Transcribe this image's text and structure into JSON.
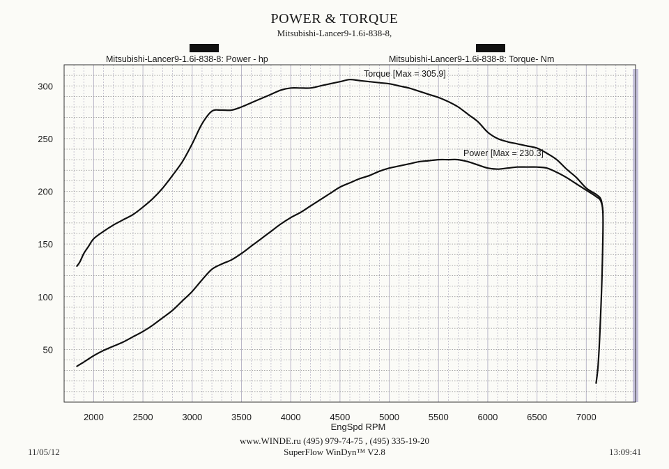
{
  "header": {
    "title": "POWER & TORQUE",
    "subtitle": "Mitsubishi-Lancer9-1.6i-838-8,"
  },
  "legend": {
    "power_label": "Mitsubishi-Lancer9-1.6i-838-8: Power -  hp",
    "torque_label": "Mitsubishi-Lancer9-1.6i-838-8: Torque-  Nm"
  },
  "chart_data": {
    "type": "line",
    "xlabel": "EngSpd  RPM",
    "ylabel": "",
    "xlim": [
      1700,
      7500
    ],
    "ylim": [
      0,
      320
    ],
    "x_ticks": [
      2000,
      2500,
      3000,
      3500,
      4000,
      4500,
      5000,
      5500,
      6000,
      6500,
      7000
    ],
    "y_ticks": [
      50,
      100,
      150,
      200,
      250,
      300
    ],
    "grid": true,
    "series": [
      {
        "name": "Torque",
        "unit": "Nm",
        "annotation": "Torque [Max = 305.9]",
        "color": "#111111",
        "x": [
          1830,
          1860,
          1900,
          1950,
          2000,
          2100,
          2200,
          2300,
          2400,
          2500,
          2600,
          2700,
          2800,
          2900,
          3000,
          3100,
          3200,
          3300,
          3400,
          3500,
          3600,
          3700,
          3800,
          3900,
          4000,
          4100,
          4200,
          4300,
          4400,
          4500,
          4600,
          4700,
          4800,
          4900,
          5000,
          5100,
          5200,
          5300,
          5400,
          5500,
          5600,
          5700,
          5800,
          5900,
          6000,
          6100,
          6200,
          6300,
          6400,
          6500,
          6600,
          6700,
          6800,
          6900,
          7000,
          7100,
          7150,
          7170
        ],
        "y": [
          129,
          133,
          141,
          148,
          155,
          162,
          168,
          173,
          178,
          185,
          193,
          203,
          215,
          228,
          245,
          264,
          276,
          277,
          277,
          280,
          284,
          288,
          292,
          296,
          298,
          298,
          298,
          300,
          302,
          304,
          306,
          305,
          304,
          303,
          302,
          300,
          298,
          295,
          292,
          289,
          285,
          280,
          273,
          266,
          256,
          250,
          247,
          245,
          243,
          241,
          236,
          230,
          221,
          213,
          203,
          197,
          192,
          180
        ]
      },
      {
        "name": "Power",
        "unit": "hp",
        "annotation": "Power  [Max = 230.3]",
        "color": "#111111",
        "x": [
          1830,
          1900,
          2000,
          2100,
          2200,
          2300,
          2400,
          2500,
          2600,
          2700,
          2800,
          2900,
          3000,
          3100,
          3200,
          3300,
          3400,
          3500,
          3600,
          3700,
          3800,
          3900,
          4000,
          4100,
          4200,
          4300,
          4400,
          4500,
          4600,
          4700,
          4800,
          4900,
          5000,
          5100,
          5200,
          5300,
          5400,
          5500,
          5600,
          5700,
          5800,
          5900,
          6000,
          6100,
          6200,
          6300,
          6400,
          6500,
          6600,
          6700,
          6800,
          6900,
          7000,
          7100,
          7150,
          7170,
          7160,
          7140,
          7120,
          7100
        ],
        "y": [
          34,
          38,
          44,
          49,
          53,
          57,
          62,
          67,
          73,
          80,
          87,
          96,
          105,
          116,
          126,
          131,
          135,
          141,
          148,
          155,
          162,
          169,
          175,
          180,
          186,
          192,
          198,
          204,
          208,
          212,
          215,
          219,
          222,
          224,
          226,
          228,
          229,
          230,
          230,
          230,
          228,
          225,
          222,
          221,
          222,
          223,
          223,
          223,
          222,
          218,
          213,
          207,
          201,
          195,
          190,
          175,
          120,
          70,
          35,
          18
        ]
      }
    ]
  },
  "footer": {
    "contacts": "www.WINDE.ru  (495) 979-74-75 , (495) 335-19-20",
    "software": "SuperFlow WinDyn™ V2.8",
    "date": "11/05/12",
    "time": "13:09:41"
  },
  "colors": {
    "grid_vertical": "#b9b6c8",
    "grid_horizontal": "#8a8a8a",
    "plot_border": "#333333",
    "edge_tint": "#9b94c4"
  }
}
